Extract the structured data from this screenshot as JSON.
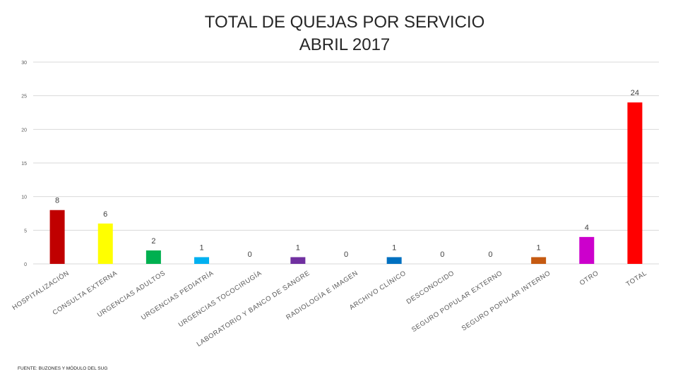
{
  "chart_data": {
    "type": "bar",
    "title": "TOTAL DE QUEJAS POR SERVICIO",
    "subtitle": "ABRIL 2017",
    "categories": [
      "HOSPITALIZACIÓN",
      "CONSULTA EXTERNA",
      "URGENCIAS ADULTOS",
      "URGENCIAS PEDIATRÍA",
      "URGENCIAS TOCOCIRUGÍA",
      "LABORATORIO Y BANCO DE SANGRE",
      "RADIOLOGÍA E IMAGEN",
      "ARCHIVO CLÍNICO",
      "DESCONOCIDO",
      "SEGURO POPULAR EXTERNO",
      "SEGURO POPULAR INTERNO",
      "OTRO",
      "TOTAL"
    ],
    "values": [
      8,
      6,
      2,
      1,
      0,
      1,
      0,
      1,
      0,
      0,
      1,
      4,
      24
    ],
    "colors": [
      "#c00000",
      "#ffff00",
      "#00b050",
      "#00b0f0",
      "#4472c4",
      "#7030a0",
      "#4472c4",
      "#0070c0",
      "#4472c4",
      "#4472c4",
      "#c55a11",
      "#cc00cc",
      "#ff0000"
    ],
    "yticks": [
      0,
      5,
      10,
      15,
      20,
      25,
      30
    ],
    "ylim": [
      0,
      30
    ],
    "grid": true,
    "xlabel": "",
    "ylabel": ""
  },
  "footer": "FUENTE: BUZONES Y MÓDULO DEL SUG"
}
